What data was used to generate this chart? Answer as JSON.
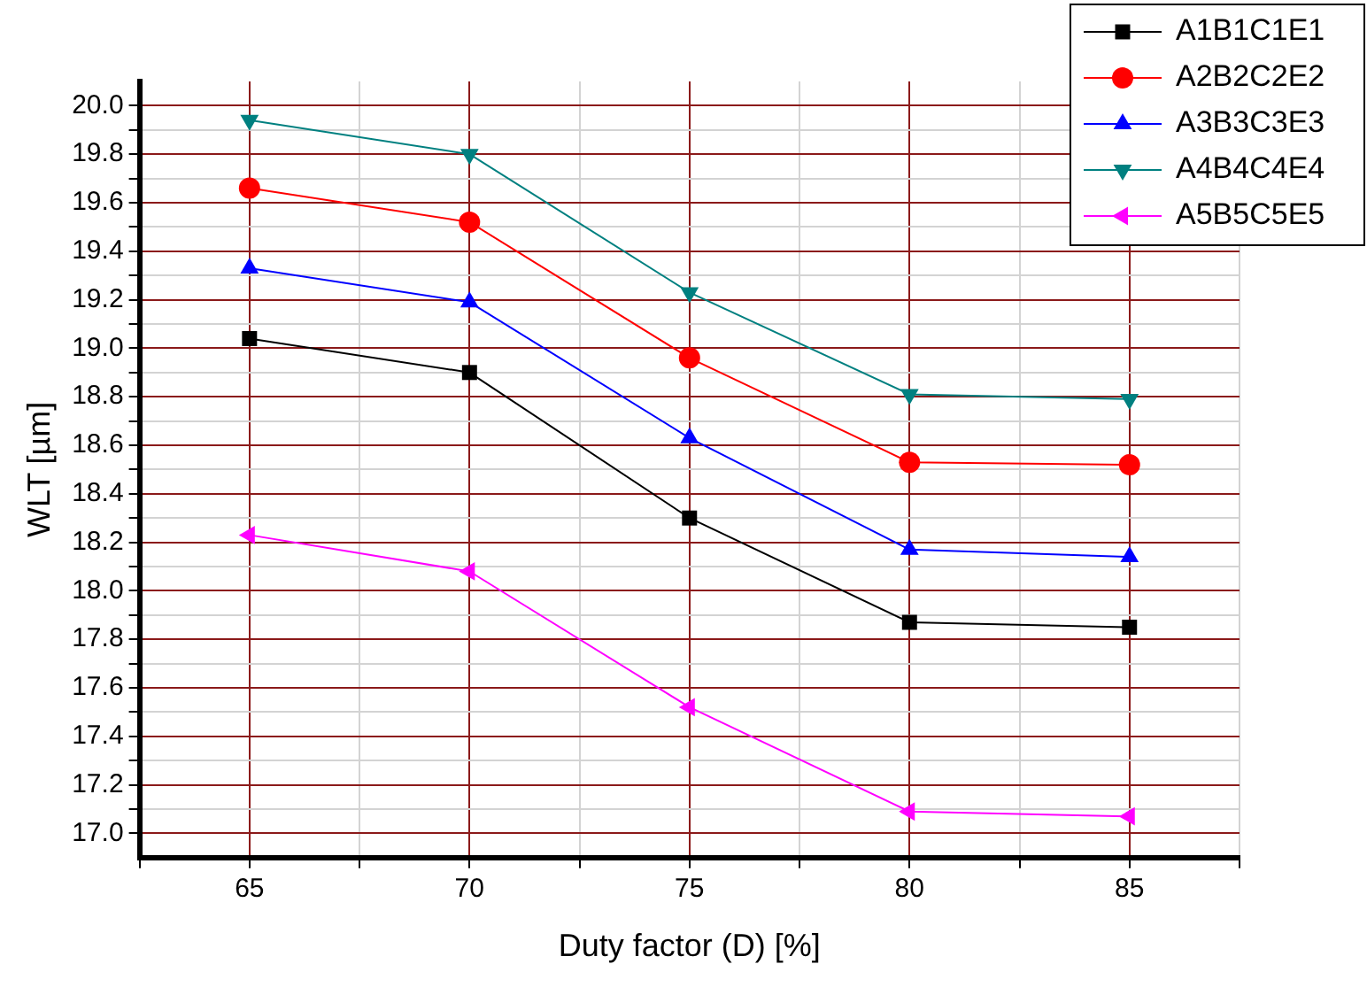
{
  "chart_data": {
    "type": "line",
    "xlabel": "Duty factor (D) [%]",
    "ylabel": "WLT [µm]",
    "x": [
      65,
      70,
      75,
      80,
      85
    ],
    "series": [
      {
        "name": "A1B1C1E1",
        "color": "#000000",
        "marker": "square",
        "values": [
          19.04,
          18.9,
          18.3,
          17.87,
          17.85
        ]
      },
      {
        "name": "A2B2C2E2",
        "color": "#ff0000",
        "marker": "circle",
        "values": [
          19.66,
          19.52,
          18.96,
          18.53,
          18.52
        ]
      },
      {
        "name": "A3B3C3E3",
        "color": "#0000ff",
        "marker": "triangle",
        "values": [
          19.33,
          19.19,
          18.63,
          18.17,
          18.14
        ]
      },
      {
        "name": "A4B4C4E4",
        "color": "#008080",
        "marker": "triangle-down",
        "values": [
          19.94,
          19.8,
          19.23,
          18.81,
          18.79
        ]
      },
      {
        "name": "A5B5C5E5",
        "color": "#ff00ff",
        "marker": "triangle-left",
        "values": [
          18.23,
          18.08,
          17.52,
          17.09,
          17.07
        ]
      }
    ],
    "xlim": [
      62.5,
      87.5
    ],
    "xticks": [
      {
        "value": 62.5,
        "label": null
      },
      65,
      {
        "value": 67.5,
        "label": null
      },
      70,
      {
        "value": 72.5,
        "label": null
      },
      75,
      {
        "value": 77.5,
        "label": null
      },
      80,
      {
        "value": 82.5,
        "label": null
      },
      85,
      {
        "value": 87.5,
        "label": null
      }
    ],
    "ylim": [
      16.9,
      20.1
    ],
    "yticks": [
      {
        "value": 17.0,
        "label": "17.0"
      },
      {
        "value": 17.1,
        "label": null
      },
      {
        "value": 17.2,
        "label": "17.2"
      },
      {
        "value": 17.3,
        "label": null
      },
      {
        "value": 17.4,
        "label": "17.4"
      },
      {
        "value": 17.5,
        "label": null
      },
      {
        "value": 17.6,
        "label": "17.6"
      },
      {
        "value": 17.7,
        "label": null
      },
      {
        "value": 17.8,
        "label": "17.8"
      },
      {
        "value": 17.9,
        "label": null
      },
      {
        "value": 18.0,
        "label": "18.0"
      },
      {
        "value": 18.1,
        "label": null
      },
      {
        "value": 18.2,
        "label": "18.2"
      },
      {
        "value": 18.3,
        "label": null
      },
      {
        "value": 18.4,
        "label": "18.4"
      },
      {
        "value": 18.5,
        "label": null
      },
      {
        "value": 18.6,
        "label": "18.6"
      },
      {
        "value": 18.7,
        "label": null
      },
      {
        "value": 18.8,
        "label": "18.8"
      },
      {
        "value": 18.9,
        "label": null
      },
      {
        "value": 19.0,
        "label": "19.0"
      },
      {
        "value": 19.1,
        "label": null
      },
      {
        "value": 19.2,
        "label": "19.2"
      },
      {
        "value": 19.3,
        "label": null
      },
      {
        "value": 19.4,
        "label": "19.4"
      },
      {
        "value": 19.5,
        "label": null
      },
      {
        "value": 19.6,
        "label": "19.6"
      },
      {
        "value": 19.7,
        "label": null
      },
      {
        "value": 19.8,
        "label": "19.8"
      },
      {
        "value": 19.9,
        "label": null
      },
      {
        "value": 20.0,
        "label": "20.0"
      }
    ],
    "grid": true,
    "legend": "top right",
    "line_style": "solid"
  }
}
